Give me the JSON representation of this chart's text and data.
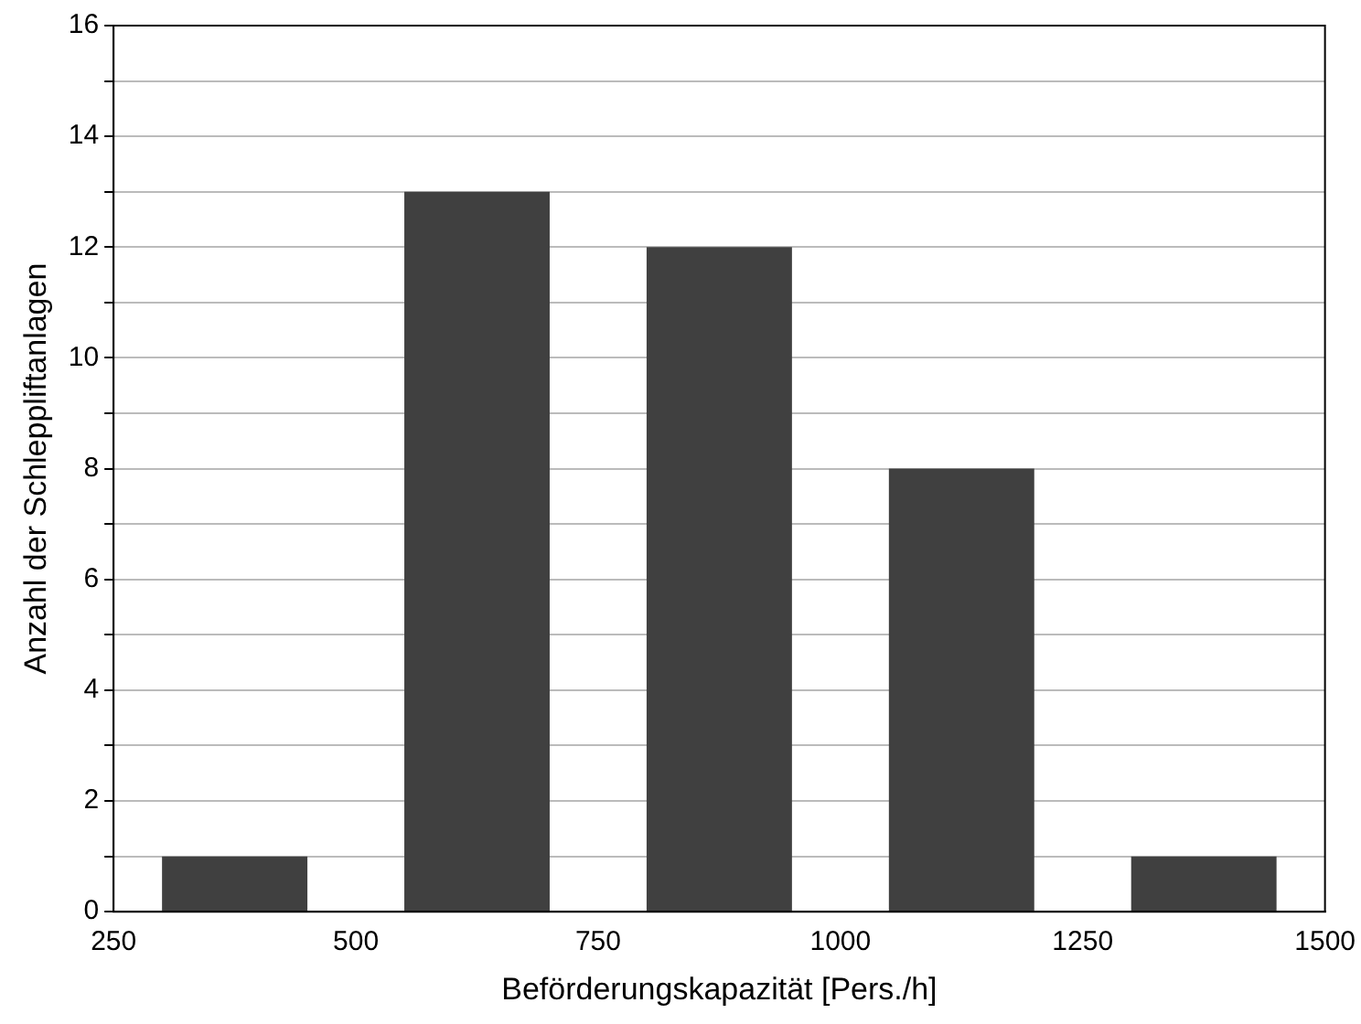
{
  "chart_data": {
    "type": "bar",
    "xlabel": "Beförderungskapazität [Pers./h]",
    "ylabel": "Anzahl der Schleppliftanlagen",
    "x": [
      375,
      625,
      875,
      1125,
      1375
    ],
    "series": [
      {
        "color": "#404040",
        "values": [
          1,
          13,
          12,
          8,
          1
        ]
      }
    ],
    "xlim": [
      250,
      1500
    ],
    "xticks": [
      250,
      500,
      750,
      1000,
      1250,
      1500
    ],
    "ylim": [
      0,
      16
    ],
    "yticks": [
      0,
      {
        "value": 1,
        "label": null
      },
      2,
      {
        "value": 3,
        "label": null
      },
      4,
      {
        "value": 5,
        "label": null
      },
      6,
      {
        "value": 7,
        "label": null
      },
      8,
      {
        "value": 9,
        "label": null
      },
      10,
      {
        "value": 11,
        "label": null
      },
      12,
      {
        "value": 13,
        "label": null
      },
      14,
      {
        "value": 15,
        "label": null
      },
      16
    ],
    "grid": "y",
    "legend": false
  }
}
